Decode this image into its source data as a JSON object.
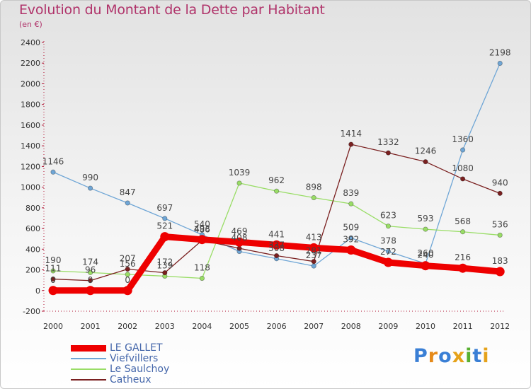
{
  "title": "Evolution du Montant de la Dette par Habitant",
  "unit": "(en €)",
  "logo": "Proxiti",
  "logo_colors": [
    "#3a7fd5",
    "#e58a1a",
    "#3a7fd5",
    "#e5a21a",
    "#58b030",
    "#3a7fd5",
    "#e5a21a"
  ],
  "chart_data": {
    "type": "line",
    "title": "Evolution du Montant de la Dette par Habitant",
    "ylabel": "(en €)",
    "xlabel": "",
    "x": [
      "2000",
      "2001",
      "2002",
      "2003",
      "2004",
      "2005",
      "2006",
      "2007",
      "2008",
      "2009",
      "2010",
      "2011",
      "2012"
    ],
    "ylim": [
      -200,
      2400
    ],
    "yticks": [
      -200,
      0,
      200,
      400,
      600,
      800,
      1000,
      1200,
      1400,
      1600,
      1800,
      2000,
      2200,
      2400
    ],
    "grid": false,
    "legend_position": "bottom-left",
    "series": [
      {
        "name": "LE GALLET",
        "color": "#ee0000",
        "width": 9,
        "values": [
          0,
          0,
          0,
          521,
          493,
          469,
          441,
          413,
          392,
          272,
          240,
          216,
          183
        ],
        "labels": [
          "0",
          "0",
          "0",
          "521",
          "493",
          "469",
          "441",
          "413",
          "392",
          "272",
          "240",
          "216",
          "183"
        ]
      },
      {
        "name": "Viefvillers",
        "color": "#6fa6d6",
        "width": 1.3,
        "values": [
          1146,
          990,
          847,
          697,
          540,
          378,
          308,
          237,
          509,
          378,
          260,
          1360,
          2198
        ],
        "labels": [
          "1146",
          "990",
          "847",
          "697",
          "540",
          "",
          "308",
          "237",
          "509",
          "378",
          "260",
          "1360",
          "2198"
        ]
      },
      {
        "name": "Le Saulchoy",
        "color": "#99dd66",
        "width": 1.3,
        "values": [
          190,
          174,
          156,
          139,
          118,
          1039,
          962,
          898,
          839,
          623,
          593,
          568,
          536
        ],
        "labels": [
          "190",
          "174",
          "156",
          "139",
          "118",
          "1039",
          "962",
          "898",
          "839",
          "623",
          "593",
          "568",
          "536"
        ]
      },
      {
        "name": "Catheux",
        "color": "#7a2020",
        "width": 1.3,
        "values": [
          111,
          96,
          207,
          172,
          486,
          408,
          337,
          281,
          1414,
          1332,
          1246,
          1080,
          940
        ],
        "labels": [
          "111",
          "96",
          "207",
          "172",
          "486",
          "408",
          "337",
          "281",
          "1414",
          "1332",
          "1246",
          "1080",
          "940"
        ]
      }
    ]
  }
}
